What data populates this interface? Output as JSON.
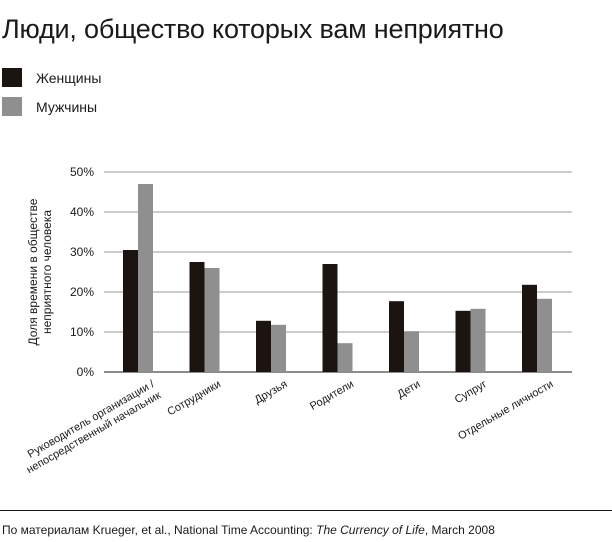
{
  "chart_data": {
    "type": "bar",
    "title": "Люди, общество которых вам неприятно",
    "ylabel": "Доля времени в обществе\nнеприятного человека",
    "xlabel": "",
    "ylim": [
      0,
      50
    ],
    "yticks": [
      0,
      10,
      20,
      30,
      40,
      50
    ],
    "ytick_labels": [
      "0%",
      "10%",
      "20%",
      "30%",
      "40%",
      "50%"
    ],
    "grid": true,
    "legend_position": "top-left",
    "categories": [
      "Руководитель организации /\nнепосредственный начальник",
      "Сотрудники",
      "Друзья",
      "Родители",
      "Дети",
      "Супруг",
      "Отдельные личности"
    ],
    "series": [
      {
        "name": "Женщины",
        "color": "#1c1411",
        "values": [
          30.5,
          27.5,
          12.8,
          27.0,
          17.7,
          15.3,
          21.8
        ]
      },
      {
        "name": "Мужчины",
        "color": "#8f8f8f",
        "values": [
          47.0,
          26.0,
          11.8,
          7.2,
          10.2,
          15.8,
          18.3
        ]
      }
    ],
    "source_prefix": "По материалам Krueger, et al., National Time Accounting: ",
    "source_italic": "The Currency of Life",
    "source_suffix": ", March 2008"
  }
}
